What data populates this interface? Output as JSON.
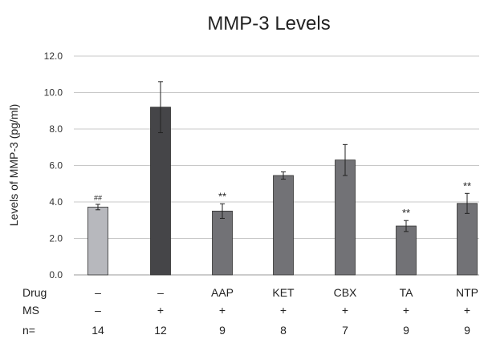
{
  "chart_data": {
    "type": "bar",
    "title": "MMP-3 Levels",
    "ylabel": "Levels of MMP-3 (pg/ml)",
    "xlabel": "",
    "ylim": [
      0,
      12
    ],
    "yticks": [
      "0.0",
      "2.0",
      "4.0",
      "6.0",
      "8.0",
      "10.0",
      "12.0"
    ],
    "grid": true,
    "categories": [
      "–",
      "–",
      "AAP",
      "KET",
      "CBX",
      "TA",
      "NTP"
    ],
    "values": [
      3.72,
      9.2,
      3.5,
      5.45,
      6.3,
      2.68,
      3.92
    ],
    "error": [
      0.15,
      1.4,
      0.4,
      0.2,
      0.85,
      0.3,
      0.55
    ],
    "bar_colors": [
      "#b7b8bd",
      "#454548",
      "#727276",
      "#727276",
      "#727276",
      "#727276",
      "#727276"
    ],
    "annotations": [
      "##",
      "",
      "**",
      "",
      "",
      "**",
      "**"
    ],
    "row_labels": [
      "Drug",
      "MS",
      "n="
    ],
    "drug": [
      "–",
      "–",
      "AAP",
      "KET",
      "CBX",
      "TA",
      "NTP"
    ],
    "ms": [
      "–",
      "+",
      "+",
      "+",
      "+",
      "+",
      "+"
    ],
    "n": [
      "14",
      "12",
      "9",
      "8",
      "7",
      "9",
      "9"
    ]
  }
}
